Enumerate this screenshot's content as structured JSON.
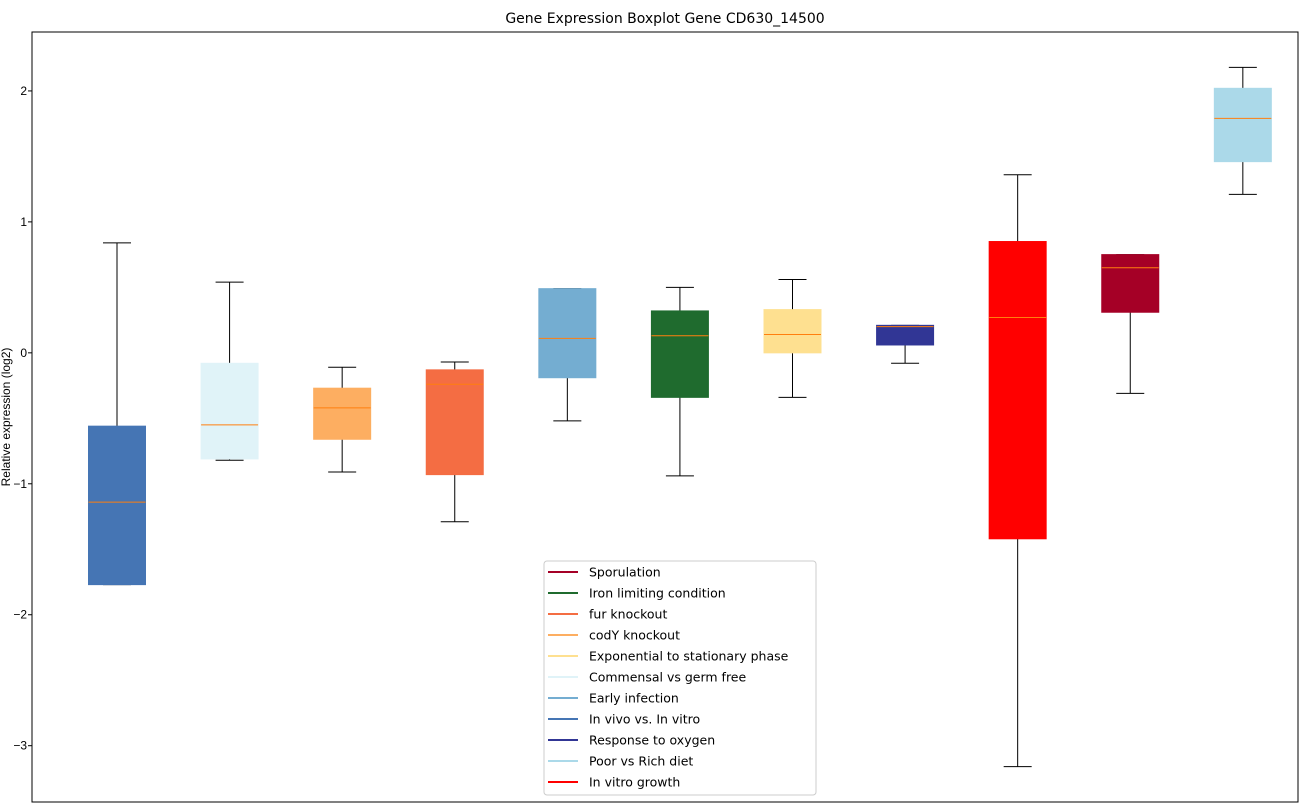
{
  "chart_data": {
    "type": "boxplot",
    "title": "Gene Expression Boxplot Gene CD630_14500",
    "xlabel": "",
    "ylabel": "Relative expression (log2)",
    "ylim": [
      -3.43,
      2.45
    ],
    "yticks": [
      2,
      1,
      0,
      -1,
      -2,
      -3
    ],
    "ytick_labels": [
      "2",
      "1",
      "0",
      "−1",
      "−2",
      "−3"
    ],
    "grid": false,
    "legend_placement": "lower-center",
    "median_color": "#ff7f0e",
    "boxes": [
      {
        "group": "In vivo vs. In vitro",
        "color": "#4575b4",
        "whisker_low": -1.77,
        "q1": -1.77,
        "median": -1.14,
        "q3": -0.56,
        "whisker_high": 0.84
      },
      {
        "group": "Commensal vs germ free",
        "color": "#e0f3f8",
        "whisker_low": -0.82,
        "q1": -0.81,
        "median": -0.55,
        "q3": -0.08,
        "whisker_high": 0.54
      },
      {
        "group": "codY knockout",
        "color": "#fdae61",
        "whisker_low": -0.91,
        "q1": -0.66,
        "median": -0.42,
        "q3": -0.27,
        "whisker_high": -0.11
      },
      {
        "group": "fur knockout",
        "color": "#f46d43",
        "whisker_low": -1.29,
        "q1": -0.93,
        "median": -0.24,
        "q3": -0.13,
        "whisker_high": -0.07
      },
      {
        "group": "Early infection",
        "color": "#74add1",
        "whisker_low": -0.52,
        "q1": -0.19,
        "median": 0.11,
        "q3": 0.49,
        "whisker_high": 0.49
      },
      {
        "group": "Iron limiting condition",
        "color": "#1f6b2e",
        "whisker_low": -0.94,
        "q1": -0.34,
        "median": 0.13,
        "q3": 0.32,
        "whisker_high": 0.5
      },
      {
        "group": "Exponential to stationary phase",
        "color": "#fee090",
        "whisker_low": -0.34,
        "q1": 0.0,
        "median": 0.14,
        "q3": 0.33,
        "whisker_high": 0.56
      },
      {
        "group": "Response to oxygen",
        "color": "#313695",
        "whisker_low": -0.08,
        "q1": 0.06,
        "median": 0.2,
        "q3": 0.21,
        "whisker_high": 0.21
      },
      {
        "group": "In vitro growth",
        "color": "#ff0000",
        "whisker_low": -3.16,
        "q1": -1.42,
        "median": 0.27,
        "q3": 0.85,
        "whisker_high": 1.36
      },
      {
        "group": "Sporulation",
        "color": "#a50026",
        "whisker_low": -0.31,
        "q1": 0.31,
        "median": 0.65,
        "q3": 0.75,
        "whisker_high": 0.75
      },
      {
        "group": "Poor vs Rich diet",
        "color": "#abd9e9",
        "whisker_low": 1.21,
        "q1": 1.46,
        "median": 1.79,
        "q3": 2.02,
        "whisker_high": 2.18
      }
    ],
    "legend": [
      {
        "label": "Sporulation",
        "color": "#a50026"
      },
      {
        "label": "Iron limiting condition",
        "color": "#1f6b2e"
      },
      {
        "label": "fur knockout",
        "color": "#f46d43"
      },
      {
        "label": "codY knockout",
        "color": "#fdae61"
      },
      {
        "label": "Exponential to stationary phase",
        "color": "#fee090"
      },
      {
        "label": "Commensal vs germ free",
        "color": "#e0f3f8"
      },
      {
        "label": "Early infection",
        "color": "#74add1"
      },
      {
        "label": "In vivo vs. In vitro",
        "color": "#4575b4"
      },
      {
        "label": "Response to oxygen",
        "color": "#313695"
      },
      {
        "label": "Poor vs Rich diet",
        "color": "#abd9e9"
      },
      {
        "label": "In vitro growth",
        "color": "#ff0000"
      }
    ]
  }
}
